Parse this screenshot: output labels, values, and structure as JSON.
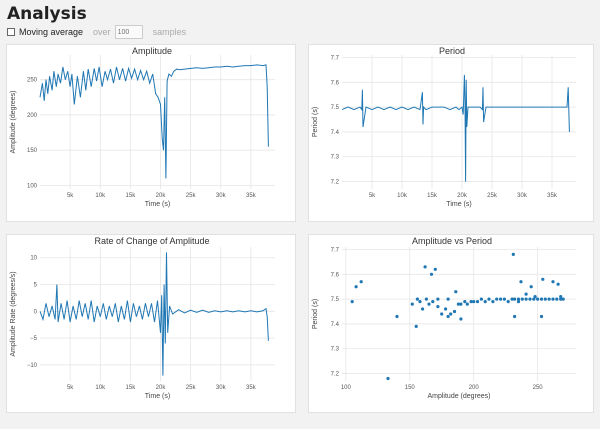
{
  "page": {
    "title": "Analysis"
  },
  "controls": {
    "moving_average_label": "Moving average",
    "over_label": "over",
    "samples_label": "samples",
    "window_placeholder": "100"
  },
  "colors": {
    "series": "#1f77b4",
    "grid": "#e6e6e6"
  },
  "chart_data": [
    {
      "type": "line",
      "title": "Amplitude",
      "xlabel": "Time (s)",
      "ylabel": "Amplitude (degrees)",
      "xlim": [
        0,
        39000
      ],
      "ylim": [
        95,
        285
      ],
      "x_ticks": [
        {
          "v": 5000,
          "t": "5k"
        },
        {
          "v": 10000,
          "t": "10k"
        },
        {
          "v": 15000,
          "t": "15k"
        },
        {
          "v": 20000,
          "t": "20k"
        },
        {
          "v": 25000,
          "t": "25k"
        },
        {
          "v": 30000,
          "t": "30k"
        },
        {
          "v": 35000,
          "t": "35k"
        }
      ],
      "y_ticks": [
        {
          "v": 100,
          "t": "100"
        },
        {
          "v": 150,
          "t": "150"
        },
        {
          "v": 200,
          "t": "200"
        },
        {
          "v": 250,
          "t": "250"
        }
      ],
      "grid": true,
      "series": [
        {
          "x": [
            0,
            400,
            700,
            1000,
            1300,
            1600,
            2000,
            2300,
            2700,
            3000,
            3400,
            3800,
            4200,
            4600,
            5000,
            5300,
            5700,
            6200,
            6700,
            7200,
            7600,
            8000,
            8500,
            9000,
            9400,
            9800,
            10300,
            10800,
            11200,
            11700,
            12200,
            12700,
            13200,
            13700,
            14200,
            14700,
            15200,
            15700,
            16200,
            16700,
            17200,
            17700,
            18200,
            18700,
            19200,
            19600,
            20000,
            20300,
            20500,
            20700,
            20900,
            21100,
            21400,
            21800,
            22200,
            22700,
            23200,
            24000,
            25000,
            26000,
            27000,
            28000,
            29000,
            30000,
            31000,
            32000,
            33000,
            34000,
            35000,
            36000,
            37000,
            37500,
            37700,
            37900
          ],
          "y": [
            225,
            245,
            220,
            250,
            230,
            255,
            235,
            262,
            240,
            258,
            245,
            268,
            250,
            262,
            240,
            258,
            215,
            255,
            225,
            262,
            235,
            265,
            240,
            266,
            248,
            268,
            240,
            262,
            250,
            265,
            245,
            268,
            250,
            266,
            248,
            266,
            252,
            265,
            250,
            263,
            250,
            262,
            245,
            258,
            230,
            225,
            215,
            165,
            150,
            225,
            110,
            248,
            258,
            255,
            262,
            265,
            264,
            265,
            266,
            267,
            266,
            267,
            268,
            268,
            269,
            268,
            269,
            270,
            270,
            271,
            270,
            271,
            240,
            155
          ]
        }
      ]
    },
    {
      "type": "line",
      "title": "Period",
      "xlabel": "Time (s)",
      "ylabel": "Period (s)",
      "xlim": [
        0,
        39000
      ],
      "ylim": [
        7.17,
        7.71
      ],
      "x_ticks": [
        {
          "v": 5000,
          "t": "5k"
        },
        {
          "v": 10000,
          "t": "10k"
        },
        {
          "v": 15000,
          "t": "15k"
        },
        {
          "v": 20000,
          "t": "20k"
        },
        {
          "v": 25000,
          "t": "25k"
        },
        {
          "v": 30000,
          "t": "30k"
        },
        {
          "v": 35000,
          "t": "35k"
        }
      ],
      "y_ticks": [
        {
          "v": 7.2,
          "t": "7.2"
        },
        {
          "v": 7.3,
          "t": "7.3"
        },
        {
          "v": 7.4,
          "t": "7.4"
        },
        {
          "v": 7.5,
          "t": "7.5"
        },
        {
          "v": 7.6,
          "t": "7.6"
        },
        {
          "v": 7.7,
          "t": "7.7"
        }
      ],
      "grid": true,
      "series": [
        {
          "x": [
            0,
            1000,
            2000,
            3000,
            3300,
            3400,
            3500,
            4000,
            5000,
            6000,
            7000,
            8000,
            9000,
            10000,
            11000,
            12000,
            13000,
            13400,
            13500,
            13600,
            14000,
            15000,
            16000,
            17000,
            18000,
            19000,
            19500,
            20000,
            20200,
            20400,
            20500,
            20600,
            20700,
            20800,
            21000,
            21500,
            22000,
            23000,
            23400,
            23500,
            23600,
            24000,
            25000,
            26000,
            27000,
            28000,
            29000,
            30000,
            31000,
            32000,
            33000,
            34000,
            35000,
            36000,
            37000,
            37500,
            37700,
            37900
          ],
          "y": [
            7.49,
            7.5,
            7.49,
            7.5,
            7.49,
            7.57,
            7.42,
            7.5,
            7.49,
            7.5,
            7.49,
            7.5,
            7.49,
            7.5,
            7.49,
            7.5,
            7.49,
            7.56,
            7.43,
            7.5,
            7.49,
            7.5,
            7.5,
            7.5,
            7.49,
            7.5,
            7.49,
            7.5,
            7.47,
            7.63,
            7.52,
            7.2,
            7.61,
            7.42,
            7.5,
            7.5,
            7.5,
            7.5,
            7.49,
            7.58,
            7.44,
            7.5,
            7.5,
            7.5,
            7.5,
            7.5,
            7.5,
            7.5,
            7.5,
            7.5,
            7.5,
            7.5,
            7.5,
            7.5,
            7.5,
            7.5,
            7.58,
            7.4
          ]
        }
      ]
    },
    {
      "type": "line",
      "title": "Rate of Change of Amplitude",
      "xlabel": "Time (s)",
      "ylabel": "Amplitude Rate (degrees/s)",
      "xlim": [
        0,
        39000
      ],
      "ylim": [
        -13,
        12
      ],
      "x_ticks": [
        {
          "v": 5000,
          "t": "5k"
        },
        {
          "v": 10000,
          "t": "10k"
        },
        {
          "v": 15000,
          "t": "15k"
        },
        {
          "v": 20000,
          "t": "20k"
        },
        {
          "v": 25000,
          "t": "25k"
        },
        {
          "v": 30000,
          "t": "30k"
        },
        {
          "v": 35000,
          "t": "35k"
        }
      ],
      "y_ticks": [
        {
          "v": -10,
          "t": "−10"
        },
        {
          "v": -5,
          "t": "−5"
        },
        {
          "v": 0,
          "t": "0"
        },
        {
          "v": 5,
          "t": "5"
        },
        {
          "v": 10,
          "t": "10"
        }
      ],
      "grid": true,
      "series": [
        {
          "x": [
            0,
            500,
            1000,
            1500,
            2000,
            2500,
            2800,
            3000,
            3500,
            4000,
            4500,
            5000,
            5500,
            6000,
            6500,
            7000,
            7500,
            8000,
            8500,
            9000,
            9500,
            10000,
            10500,
            11000,
            11500,
            12000,
            12500,
            13000,
            13500,
            14000,
            14500,
            15000,
            15500,
            16000,
            16500,
            17000,
            17500,
            18000,
            18500,
            19000,
            19500,
            20000,
            20200,
            20400,
            20600,
            20800,
            21000,
            21200,
            21500,
            22000,
            23000,
            24000,
            25000,
            26000,
            27000,
            28000,
            29000,
            30000,
            31000,
            32000,
            33000,
            34000,
            35000,
            36000,
            37000,
            37500,
            37700,
            37900
          ],
          "y": [
            0,
            -1.5,
            1.5,
            -1,
            1,
            -1.5,
            5,
            -2,
            1.5,
            -1.5,
            2,
            -2,
            1,
            -1.5,
            2,
            -1,
            1.5,
            -1.5,
            2,
            -2,
            1,
            -1,
            1.5,
            -1.5,
            1,
            -1,
            1.5,
            -2,
            1,
            -1.5,
            2,
            -2,
            1.5,
            -1,
            1,
            -1.5,
            1.5,
            -1,
            1.5,
            -2,
            2,
            -4,
            3,
            -12,
            5,
            -6,
            11,
            -4,
            1,
            -0.5,
            0.3,
            -0.3,
            0.2,
            -0.2,
            0.2,
            -0.2,
            0.1,
            -0.1,
            0.1,
            -0.1,
            0.1,
            -0.1,
            0.1,
            -0.1,
            0.1,
            0.5,
            -1,
            -5.5
          ]
        }
      ]
    },
    {
      "type": "scatter",
      "title": "Amplitude vs Period",
      "xlabel": "Amplitude (degrees)",
      "ylabel": "Period (s)",
      "xlim": [
        97,
        280
      ],
      "ylim": [
        7.17,
        7.71
      ],
      "x_ticks": [
        {
          "v": 100,
          "t": "100"
        },
        {
          "v": 150,
          "t": "150"
        },
        {
          "v": 200,
          "t": "200"
        },
        {
          "v": 250,
          "t": "250"
        }
      ],
      "y_ticks": [
        {
          "v": 7.2,
          "t": "7.2"
        },
        {
          "v": 7.3,
          "t": "7.3"
        },
        {
          "v": 7.4,
          "t": "7.4"
        },
        {
          "v": 7.5,
          "t": "7.5"
        },
        {
          "v": 7.6,
          "t": "7.6"
        },
        {
          "v": 7.7,
          "t": "7.7"
        }
      ],
      "grid": true,
      "series": [
        {
          "x": [
            105,
            108,
            112,
            133,
            140,
            152,
            155,
            156,
            160,
            162,
            165,
            167,
            170,
            172,
            175,
            178,
            180,
            182,
            185,
            188,
            190,
            193,
            195,
            198,
            200,
            203,
            206,
            209,
            212,
            215,
            218,
            221,
            224,
            227,
            230,
            232,
            235,
            238,
            241,
            244,
            247,
            250,
            253,
            256,
            259,
            262,
            265,
            268,
            270,
            231,
            237,
            241,
            245,
            248,
            254,
            262,
            266,
            268,
            190,
            186,
            180,
            172,
            168,
            163,
            158,
            232,
            253,
            235
          ],
          "y": [
            7.49,
            7.55,
            7.57,
            7.18,
            7.43,
            7.48,
            7.39,
            7.5,
            7.46,
            7.63,
            7.48,
            7.6,
            7.62,
            7.47,
            7.44,
            7.46,
            7.43,
            7.44,
            7.45,
            7.48,
            7.48,
            7.49,
            7.48,
            7.49,
            7.49,
            7.49,
            7.5,
            7.49,
            7.5,
            7.49,
            7.5,
            7.5,
            7.5,
            7.49,
            7.5,
            7.5,
            7.5,
            7.5,
            7.5,
            7.5,
            7.5,
            7.5,
            7.5,
            7.5,
            7.5,
            7.5,
            7.5,
            7.5,
            7.5,
            7.68,
            7.57,
            7.52,
            7.55,
            7.51,
            7.58,
            7.57,
            7.56,
            7.51,
            7.42,
            7.53,
            7.5,
            7.5,
            7.49,
            7.5,
            7.49,
            7.43,
            7.43,
            7.49
          ]
        }
      ]
    }
  ]
}
